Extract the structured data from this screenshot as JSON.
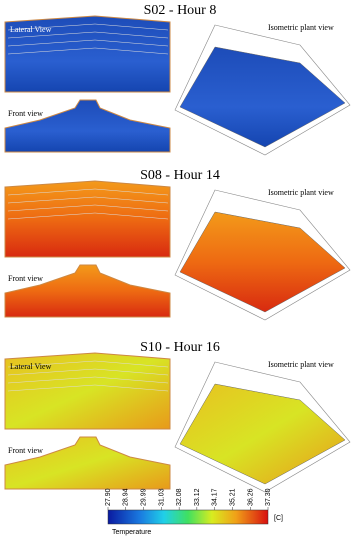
{
  "panels": [
    {
      "title": "S02 - Hour 8",
      "labels": {
        "lateral": "Lateral View",
        "front": "Front view",
        "isometric": "Isometric plant view"
      }
    },
    {
      "title": "S08 - Hour 14",
      "labels": {
        "front": "Front view",
        "isometric": "Isometric plant view"
      }
    },
    {
      "title": "S10 - Hour 16",
      "labels": {
        "lateral": "Lateral View",
        "front": "Front view",
        "isometric": "Isometric plant view"
      }
    }
  ],
  "colorbar": {
    "title": "Temperature",
    "unit": "[C]",
    "ticks": [
      {
        "value": 27.9,
        "label": "27.90"
      },
      {
        "value": 28.94,
        "label": "28.94"
      },
      {
        "value": 29.99,
        "label": "29.99"
      },
      {
        "value": 31.03,
        "label": "31.03"
      },
      {
        "value": 32.08,
        "label": "32.08"
      },
      {
        "value": 33.12,
        "label": "33.12"
      },
      {
        "value": 34.17,
        "label": "34.17"
      },
      {
        "value": 35.21,
        "label": "35.21"
      },
      {
        "value": 36.26,
        "label": "36.26"
      },
      {
        "value": 37.3,
        "label": "37.30"
      }
    ]
  }
}
